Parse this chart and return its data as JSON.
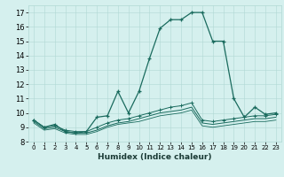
{
  "xlabel": "Humidex (Indice chaleur)",
  "background_color": "#d5f0ee",
  "grid_color": "#b0d8d4",
  "line_color": "#1a6b5e",
  "ylim": [
    8.0,
    17.5
  ],
  "yticks": [
    8,
    9,
    10,
    11,
    12,
    13,
    14,
    15,
    16,
    17
  ],
  "xticks": [
    0,
    1,
    2,
    3,
    4,
    5,
    6,
    7,
    8,
    9,
    10,
    11,
    12,
    13,
    14,
    15,
    16,
    17,
    18,
    19,
    20,
    21,
    22,
    23
  ],
  "line1_y": [
    9.5,
    9.0,
    9.2,
    8.7,
    8.6,
    8.7,
    9.7,
    9.8,
    11.5,
    10.0,
    11.5,
    13.8,
    15.9,
    16.5,
    16.5,
    17.0,
    17.0,
    15.0,
    15.0,
    11.0,
    9.7,
    10.4,
    9.9,
    10.0
  ],
  "line2_y": [
    9.5,
    9.0,
    9.1,
    8.8,
    8.7,
    8.7,
    9.0,
    9.3,
    9.5,
    9.6,
    9.8,
    10.0,
    10.2,
    10.4,
    10.5,
    10.7,
    9.5,
    9.4,
    9.5,
    9.6,
    9.7,
    9.8,
    9.8,
    9.9
  ],
  "line3_y": [
    9.4,
    8.9,
    9.0,
    8.7,
    8.6,
    8.6,
    8.8,
    9.1,
    9.3,
    9.4,
    9.6,
    9.8,
    10.0,
    10.1,
    10.2,
    10.4,
    9.3,
    9.2,
    9.3,
    9.4,
    9.5,
    9.6,
    9.6,
    9.7
  ],
  "line4_y": [
    9.3,
    8.8,
    8.9,
    8.6,
    8.5,
    8.5,
    8.7,
    9.0,
    9.2,
    9.3,
    9.4,
    9.6,
    9.8,
    9.9,
    10.0,
    10.2,
    9.1,
    9.0,
    9.1,
    9.2,
    9.3,
    9.4,
    9.4,
    9.5
  ]
}
